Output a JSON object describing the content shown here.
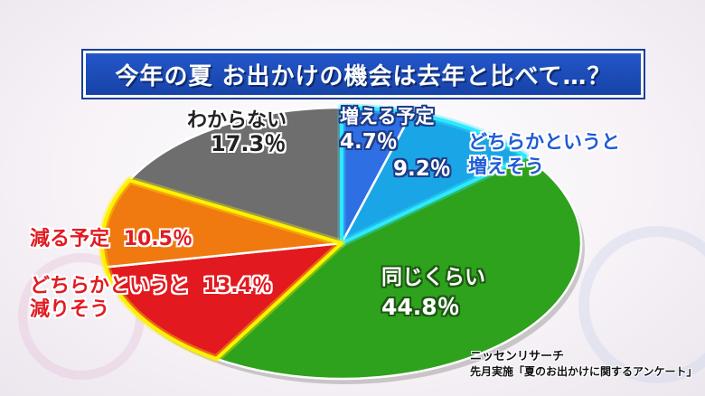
{
  "title": "今年の夏 お出かけの機会は去年と比べて…？",
  "source": {
    "line1": "ニッセンリサーチ",
    "line2": "先月実施「夏のお出かけに関するアンケート」"
  },
  "colors": {
    "increase_plan": "#2f6fe4",
    "increase_maybe": "#1aa6e6",
    "same": "#2ea21c",
    "decrease_maybe": "#e2191f",
    "decrease_plan": "#f07a10",
    "unknown": "#6e6e6e",
    "highlight_blue": "#2fe9ff",
    "highlight_yellow": "#fff200"
  },
  "chart_data": {
    "type": "pie",
    "title": "今年の夏 お出かけの機会は去年と比べて…？",
    "slices": [
      {
        "key": "increase_plan",
        "label": "増える予定",
        "value": 4.7,
        "value_text": "4.7％",
        "color": "#2f6fe4"
      },
      {
        "key": "increase_maybe",
        "label": "どちらかというと増えそう",
        "label_lines": [
          "どちらかというと",
          "増えそう"
        ],
        "value": 9.2,
        "value_text": "9.2％",
        "color": "#1aa6e6"
      },
      {
        "key": "same",
        "label": "同じくらい",
        "value": 44.8,
        "value_text": "44.8％",
        "color": "#2ea21c"
      },
      {
        "key": "decrease_maybe",
        "label": "どちらかというと減りそう",
        "label_lines": [
          "どちらかというと",
          "減りそう"
        ],
        "value": 13.4,
        "value_text": "13.4％",
        "color": "#e2191f"
      },
      {
        "key": "decrease_plan",
        "label": "減る予定",
        "value": 10.5,
        "value_text": "10.5％",
        "color": "#f07a10"
      },
      {
        "key": "unknown",
        "label": "わからない",
        "value": 17.3,
        "value_text": "17.3％",
        "color": "#6e6e6e"
      }
    ]
  }
}
